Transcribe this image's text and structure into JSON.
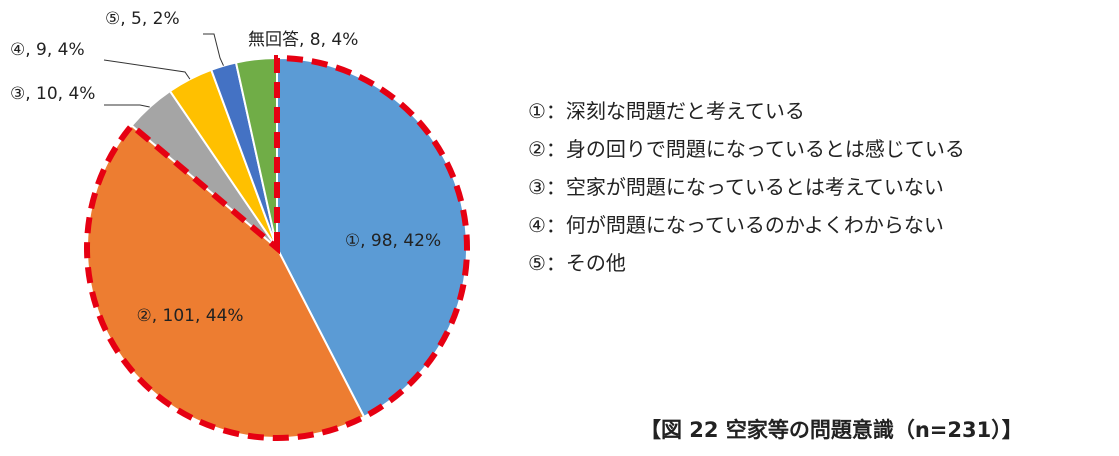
{
  "chart_data": {
    "type": "pie",
    "title": "",
    "slices": [
      {
        "key": "s1",
        "label": "①",
        "value": 98,
        "percent": 42,
        "color": "#5B9BD5",
        "data_label": "①, 98, 42%",
        "highlighted": true
      },
      {
        "key": "s2",
        "label": "②",
        "value": 101,
        "percent": 44,
        "color": "#ED7D31",
        "data_label": "②, 101, 44%",
        "highlighted": true
      },
      {
        "key": "s3",
        "label": "③",
        "value": 10,
        "percent": 4,
        "color": "#A5A5A5",
        "data_label": "③, 10, 4%",
        "highlighted": false
      },
      {
        "key": "s4",
        "label": "④",
        "value": 9,
        "percent": 4,
        "color": "#FFC000",
        "data_label": "④, 9, 4%",
        "highlighted": false
      },
      {
        "key": "s5",
        "label": "⑤",
        "value": 5,
        "percent": 2,
        "color": "#4472C4",
        "data_label": "⑤, 5, 2%",
        "highlighted": false
      },
      {
        "key": "na",
        "label": "無回答",
        "value": 8,
        "percent": 4,
        "color": "#70AD47",
        "data_label": "無回答, 8, 4%",
        "highlighted": false
      }
    ],
    "highlight_color": "#E60012",
    "legend": [
      "①：深刻な問題だと考えている",
      "②：身の回りで問題になっているとは感じている",
      "③：空家が問題になっているとは考えていない",
      "④：何が問題になっているのかよくわからない",
      "⑤：その他"
    ],
    "caption": "【図 22 空家等の問題意識（n=231）】"
  }
}
